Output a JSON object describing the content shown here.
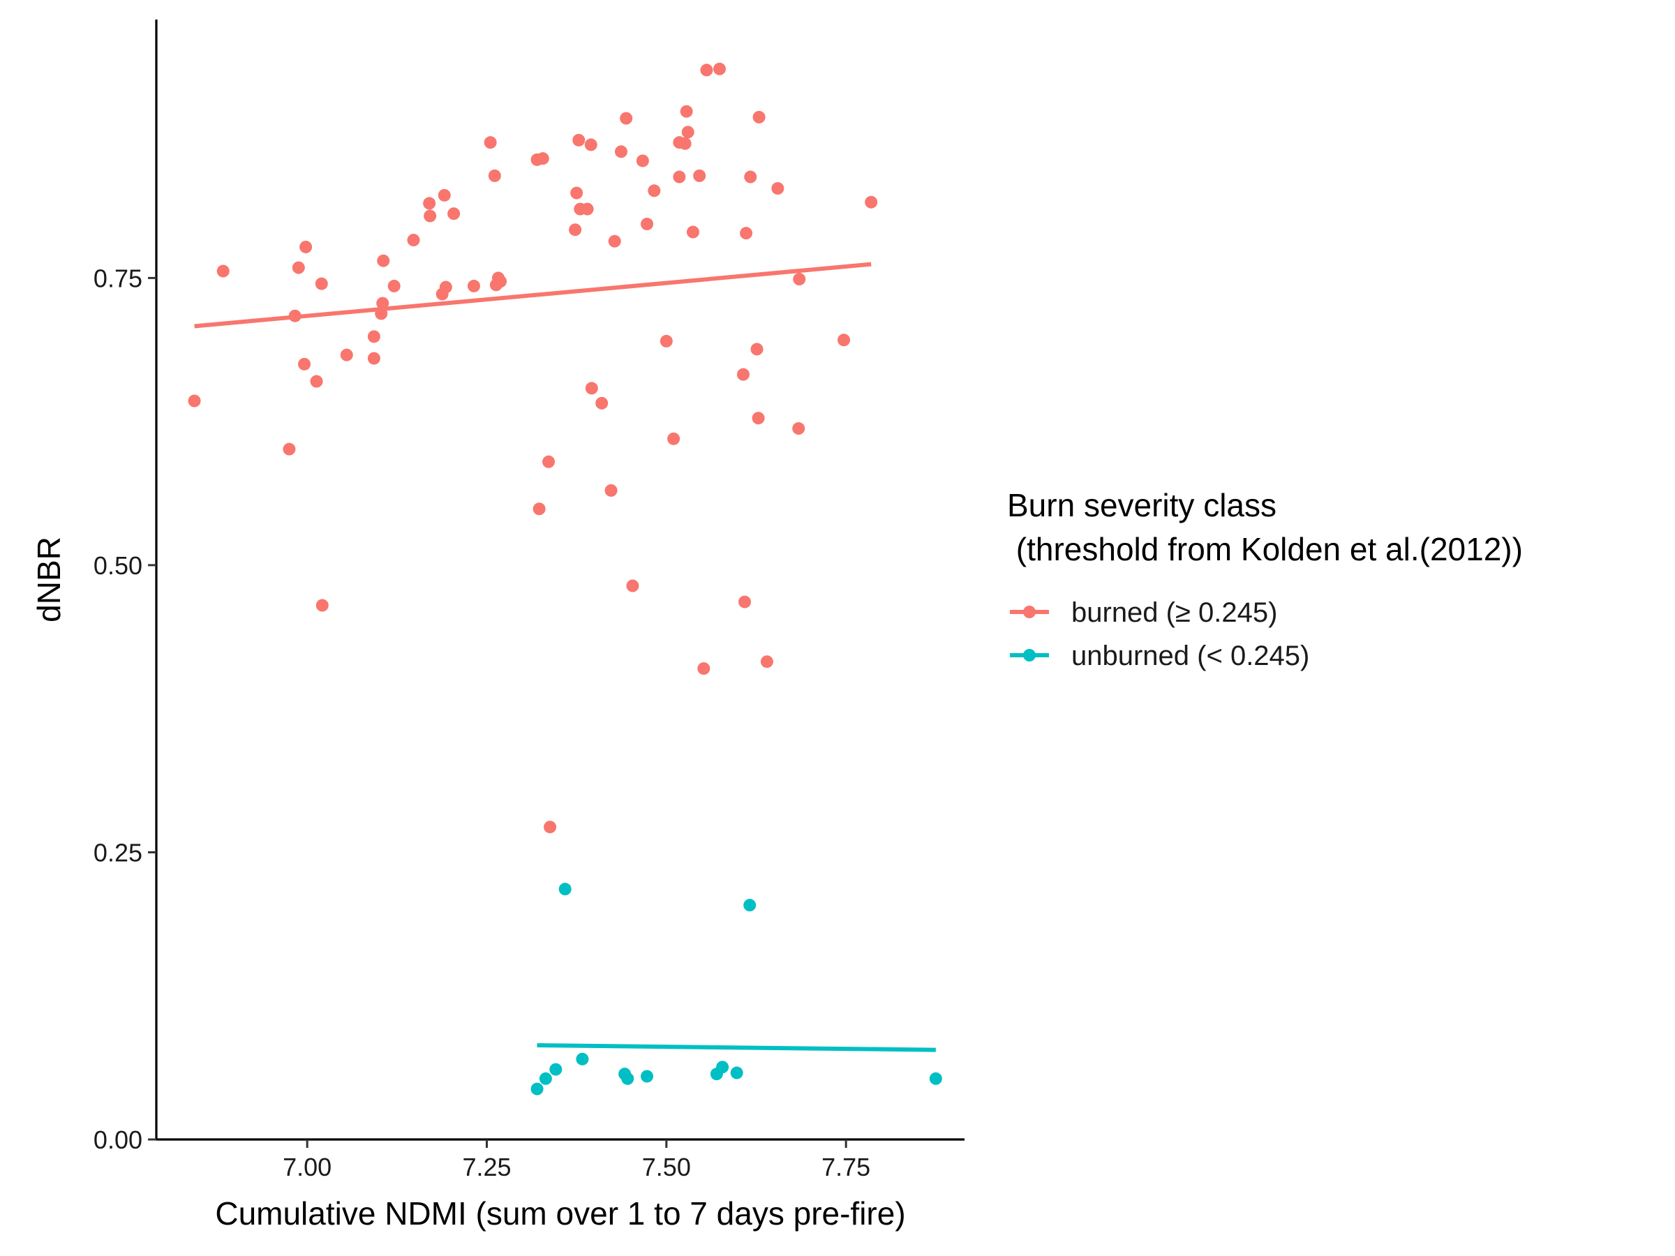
{
  "chart_data": {
    "type": "scatter",
    "title": "",
    "xlabel": "Cumulative NDMI (sum over 1 to 7 days pre-fire)",
    "ylabel": "dNBR",
    "xlim": [
      6.79,
      7.915
    ],
    "ylim": [
      0.0,
      0.975
    ],
    "x_ticks": [
      7.0,
      7.25,
      7.5,
      7.75
    ],
    "x_tick_labels": [
      "7.00",
      "7.25",
      "7.50",
      "7.75"
    ],
    "y_ticks": [
      0.0,
      0.25,
      0.5,
      0.75
    ],
    "y_tick_labels": [
      "0.00",
      "0.25",
      "0.50",
      "0.75"
    ],
    "grid": false,
    "legend": {
      "title_line1": "Burn severity class",
      "title_line2": " (threshold from Kolden et al.(2012))",
      "placement": "right"
    },
    "series": [
      {
        "name": "burned (≥ 0.245)",
        "color": "#F8766D",
        "points": [
          [
            6.843,
            0.643
          ],
          [
            6.883,
            0.756
          ],
          [
            6.975,
            0.601
          ],
          [
            6.983,
            0.717
          ],
          [
            6.988,
            0.759
          ],
          [
            6.996,
            0.675
          ],
          [
            6.998,
            0.777
          ],
          [
            7.013,
            0.66
          ],
          [
            7.02,
            0.745
          ],
          [
            7.021,
            0.465
          ],
          [
            7.055,
            0.683
          ],
          [
            7.093,
            0.68
          ],
          [
            7.093,
            0.699
          ],
          [
            7.103,
            0.719
          ],
          [
            7.105,
            0.728
          ],
          [
            7.106,
            0.765
          ],
          [
            7.121,
            0.743
          ],
          [
            7.148,
            0.783
          ],
          [
            7.17,
            0.815
          ],
          [
            7.171,
            0.804
          ],
          [
            7.188,
            0.736
          ],
          [
            7.191,
            0.822
          ],
          [
            7.193,
            0.742
          ],
          [
            7.204,
            0.806
          ],
          [
            7.232,
            0.743
          ],
          [
            7.255,
            0.868
          ],
          [
            7.261,
            0.839
          ],
          [
            7.263,
            0.744
          ],
          [
            7.266,
            0.75
          ],
          [
            7.269,
            0.747
          ],
          [
            7.32,
            0.853
          ],
          [
            7.323,
            0.549
          ],
          [
            7.328,
            0.854
          ],
          [
            7.336,
            0.59
          ],
          [
            7.338,
            0.272
          ],
          [
            7.373,
            0.792
          ],
          [
            7.375,
            0.824
          ],
          [
            7.378,
            0.87
          ],
          [
            7.38,
            0.81
          ],
          [
            7.39,
            0.81
          ],
          [
            7.395,
            0.866
          ],
          [
            7.396,
            0.654
          ],
          [
            7.41,
            0.641
          ],
          [
            7.423,
            0.565
          ],
          [
            7.428,
            0.782
          ],
          [
            7.437,
            0.86
          ],
          [
            7.444,
            0.889
          ],
          [
            7.453,
            0.482
          ],
          [
            7.467,
            0.852
          ],
          [
            7.473,
            0.797
          ],
          [
            7.483,
            0.826
          ],
          [
            7.5,
            0.695
          ],
          [
            7.51,
            0.61
          ],
          [
            7.518,
            0.838
          ],
          [
            7.518,
            0.868
          ],
          [
            7.526,
            0.867
          ],
          [
            7.528,
            0.895
          ],
          [
            7.53,
            0.877
          ],
          [
            7.537,
            0.79
          ],
          [
            7.546,
            0.839
          ],
          [
            7.552,
            0.41
          ],
          [
            7.556,
            0.931
          ],
          [
            7.574,
            0.932
          ],
          [
            7.607,
            0.666
          ],
          [
            7.609,
            0.468
          ],
          [
            7.611,
            0.789
          ],
          [
            7.617,
            0.838
          ],
          [
            7.626,
            0.688
          ],
          [
            7.628,
            0.628
          ],
          [
            7.629,
            0.89
          ],
          [
            7.64,
            0.416
          ],
          [
            7.655,
            0.828
          ],
          [
            7.684,
            0.619
          ],
          [
            7.685,
            0.749
          ],
          [
            7.747,
            0.696
          ],
          [
            7.785,
            0.816
          ]
        ],
        "fit": {
          "x": [
            6.843,
            7.785
          ],
          "y": [
            0.708,
            0.762
          ]
        }
      },
      {
        "name": "unburned (< 0.245)",
        "color": "#00BFC4",
        "points": [
          [
            7.32,
            0.044
          ],
          [
            7.332,
            0.053
          ],
          [
            7.346,
            0.061
          ],
          [
            7.359,
            0.218
          ],
          [
            7.383,
            0.07
          ],
          [
            7.442,
            0.057
          ],
          [
            7.446,
            0.053
          ],
          [
            7.473,
            0.055
          ],
          [
            7.57,
            0.057
          ],
          [
            7.578,
            0.063
          ],
          [
            7.598,
            0.058
          ],
          [
            7.616,
            0.204
          ],
          [
            7.875,
            0.053
          ]
        ],
        "fit": {
          "x": [
            7.32,
            7.875
          ],
          "y": [
            0.082,
            0.078
          ]
        }
      }
    ]
  }
}
